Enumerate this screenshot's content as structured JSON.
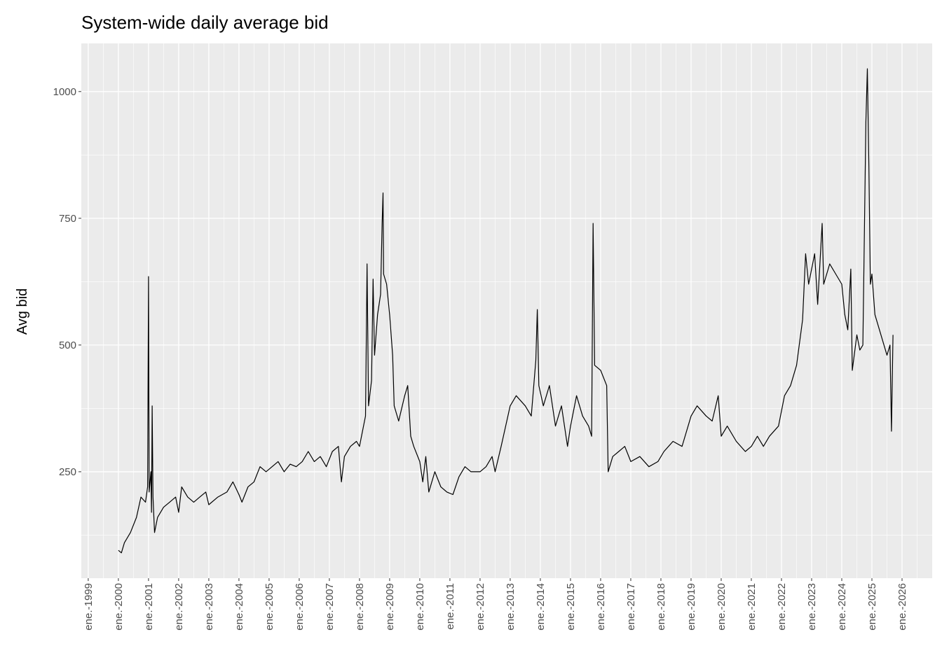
{
  "chart_data": {
    "type": "line",
    "title": "System-wide daily average bid",
    "xlabel": "",
    "ylabel": "Avg bid",
    "ylim": [
      40,
      1095
    ],
    "xlim": [
      1998.77,
      2027.0
    ],
    "y_ticks": [
      250,
      500,
      750,
      1000
    ],
    "y_tick_labels": [
      "250",
      "500",
      "750",
      "1000"
    ],
    "x_tick_labels": [
      "ene.-1999",
      "ene.-2000",
      "ene.-2001",
      "ene.-2002",
      "ene.-2003",
      "ene.-2004",
      "ene.-2005",
      "ene.-2006",
      "ene.-2007",
      "ene.-2008",
      "ene.-2009",
      "ene.-2010",
      "ene.-2011",
      "ene.-2012",
      "ene.-2013",
      "ene.-2014",
      "ene.-2015",
      "ene.-2016",
      "ene.-2017",
      "ene.-2018",
      "ene.-2019",
      "ene.-2020",
      "ene.-2021",
      "ene.-2022",
      "ene.-2023",
      "ene.-2024",
      "ene.-2025",
      "ene.-2026"
    ],
    "x_tick_years": [
      1999,
      2000,
      2001,
      2002,
      2003,
      2004,
      2005,
      2006,
      2007,
      2008,
      2009,
      2010,
      2011,
      2012,
      2013,
      2014,
      2015,
      2016,
      2017,
      2018,
      2019,
      2020,
      2021,
      2022,
      2023,
      2024,
      2025,
      2026
    ],
    "grid": true,
    "series": [
      {
        "name": "Avg bid",
        "color": "#000000",
        "points": [
          [
            2000.0,
            95
          ],
          [
            2000.1,
            90
          ],
          [
            2000.2,
            110
          ],
          [
            2000.4,
            130
          ],
          [
            2000.6,
            160
          ],
          [
            2000.75,
            200
          ],
          [
            2000.9,
            190
          ],
          [
            2000.97,
            220
          ],
          [
            2001.0,
            635
          ],
          [
            2001.02,
            210
          ],
          [
            2001.08,
            250
          ],
          [
            2001.1,
            170
          ],
          [
            2001.12,
            380
          ],
          [
            2001.15,
            200
          ],
          [
            2001.2,
            130
          ],
          [
            2001.3,
            160
          ],
          [
            2001.5,
            180
          ],
          [
            2001.7,
            190
          ],
          [
            2001.9,
            200
          ],
          [
            2002.0,
            170
          ],
          [
            2002.1,
            220
          ],
          [
            2002.3,
            200
          ],
          [
            2002.5,
            190
          ],
          [
            2002.7,
            200
          ],
          [
            2002.9,
            210
          ],
          [
            2003.0,
            185
          ],
          [
            2003.3,
            200
          ],
          [
            2003.6,
            210
          ],
          [
            2003.8,
            230
          ],
          [
            2004.0,
            205
          ],
          [
            2004.1,
            190
          ],
          [
            2004.3,
            220
          ],
          [
            2004.5,
            230
          ],
          [
            2004.7,
            260
          ],
          [
            2004.9,
            250
          ],
          [
            2005.1,
            260
          ],
          [
            2005.3,
            270
          ],
          [
            2005.5,
            250
          ],
          [
            2005.7,
            265
          ],
          [
            2005.9,
            260
          ],
          [
            2006.1,
            270
          ],
          [
            2006.3,
            290
          ],
          [
            2006.5,
            270
          ],
          [
            2006.7,
            280
          ],
          [
            2006.9,
            260
          ],
          [
            2007.1,
            290
          ],
          [
            2007.3,
            300
          ],
          [
            2007.4,
            230
          ],
          [
            2007.5,
            280
          ],
          [
            2007.7,
            300
          ],
          [
            2007.9,
            310
          ],
          [
            2008.0,
            300
          ],
          [
            2008.1,
            330
          ],
          [
            2008.2,
            360
          ],
          [
            2008.25,
            660
          ],
          [
            2008.3,
            380
          ],
          [
            2008.4,
            430
          ],
          [
            2008.45,
            630
          ],
          [
            2008.5,
            480
          ],
          [
            2008.6,
            560
          ],
          [
            2008.7,
            600
          ],
          [
            2008.75,
            740
          ],
          [
            2008.78,
            800
          ],
          [
            2008.8,
            640
          ],
          [
            2008.9,
            620
          ],
          [
            2009.0,
            560
          ],
          [
            2009.1,
            480
          ],
          [
            2009.15,
            380
          ],
          [
            2009.3,
            350
          ],
          [
            2009.5,
            400
          ],
          [
            2009.6,
            420
          ],
          [
            2009.7,
            320
          ],
          [
            2009.8,
            300
          ],
          [
            2010.0,
            270
          ],
          [
            2010.1,
            230
          ],
          [
            2010.2,
            280
          ],
          [
            2010.3,
            210
          ],
          [
            2010.5,
            250
          ],
          [
            2010.7,
            220
          ],
          [
            2010.9,
            210
          ],
          [
            2011.1,
            205
          ],
          [
            2011.3,
            240
          ],
          [
            2011.5,
            260
          ],
          [
            2011.7,
            250
          ],
          [
            2012.0,
            250
          ],
          [
            2012.2,
            260
          ],
          [
            2012.4,
            280
          ],
          [
            2012.5,
            250
          ],
          [
            2012.7,
            300
          ],
          [
            2013.0,
            380
          ],
          [
            2013.2,
            400
          ],
          [
            2013.5,
            380
          ],
          [
            2013.7,
            360
          ],
          [
            2013.85,
            470
          ],
          [
            2013.9,
            570
          ],
          [
            2013.95,
            420
          ],
          [
            2014.1,
            380
          ],
          [
            2014.3,
            420
          ],
          [
            2014.5,
            340
          ],
          [
            2014.7,
            380
          ],
          [
            2014.9,
            300
          ],
          [
            2015.0,
            340
          ],
          [
            2015.2,
            400
          ],
          [
            2015.4,
            360
          ],
          [
            2015.6,
            340
          ],
          [
            2015.7,
            320
          ],
          [
            2015.75,
            740
          ],
          [
            2015.8,
            460
          ],
          [
            2016.0,
            450
          ],
          [
            2016.2,
            420
          ],
          [
            2016.25,
            250
          ],
          [
            2016.4,
            280
          ],
          [
            2016.6,
            290
          ],
          [
            2016.8,
            300
          ],
          [
            2017.0,
            270
          ],
          [
            2017.3,
            280
          ],
          [
            2017.6,
            260
          ],
          [
            2017.9,
            270
          ],
          [
            2018.1,
            290
          ],
          [
            2018.4,
            310
          ],
          [
            2018.7,
            300
          ],
          [
            2019.0,
            360
          ],
          [
            2019.2,
            380
          ],
          [
            2019.5,
            360
          ],
          [
            2019.7,
            350
          ],
          [
            2019.9,
            400
          ],
          [
            2020.0,
            320
          ],
          [
            2020.2,
            340
          ],
          [
            2020.5,
            310
          ],
          [
            2020.8,
            290
          ],
          [
            2021.0,
            300
          ],
          [
            2021.2,
            320
          ],
          [
            2021.4,
            300
          ],
          [
            2021.6,
            320
          ],
          [
            2021.9,
            340
          ],
          [
            2022.1,
            400
          ],
          [
            2022.3,
            420
          ],
          [
            2022.5,
            460
          ],
          [
            2022.7,
            550
          ],
          [
            2022.8,
            680
          ],
          [
            2022.9,
            620
          ],
          [
            2023.0,
            650
          ],
          [
            2023.1,
            680
          ],
          [
            2023.2,
            580
          ],
          [
            2023.35,
            740
          ],
          [
            2023.4,
            620
          ],
          [
            2023.6,
            660
          ],
          [
            2023.8,
            640
          ],
          [
            2024.0,
            620
          ],
          [
            2024.1,
            560
          ],
          [
            2024.2,
            530
          ],
          [
            2024.3,
            650
          ],
          [
            2024.35,
            450
          ],
          [
            2024.5,
            520
          ],
          [
            2024.6,
            490
          ],
          [
            2024.7,
            500
          ],
          [
            2024.8,
            940
          ],
          [
            2024.85,
            1045
          ],
          [
            2024.9,
            850
          ],
          [
            2024.95,
            620
          ],
          [
            2025.0,
            640
          ],
          [
            2025.1,
            560
          ],
          [
            2025.2,
            540
          ],
          [
            2025.3,
            520
          ],
          [
            2025.4,
            500
          ],
          [
            2025.5,
            480
          ],
          [
            2025.6,
            500
          ],
          [
            2025.65,
            330
          ],
          [
            2025.7,
            520
          ]
        ]
      }
    ]
  }
}
